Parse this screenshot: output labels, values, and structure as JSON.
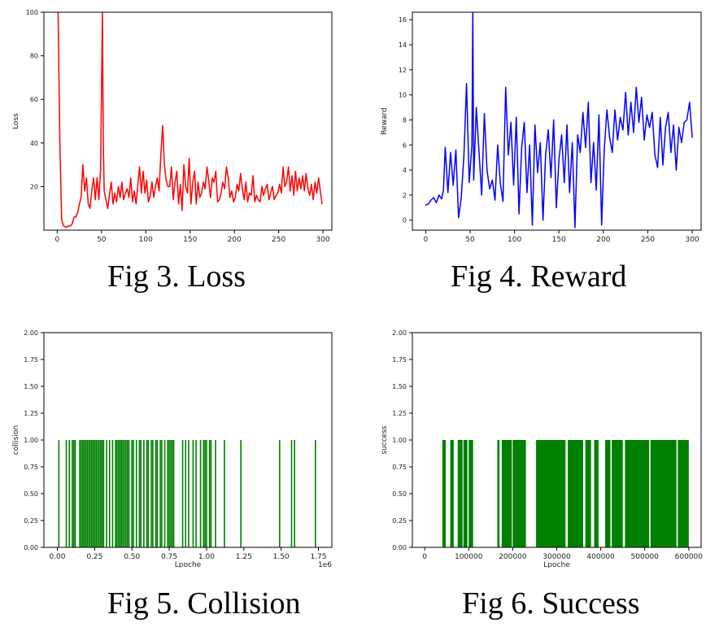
{
  "chart_data": [
    {
      "id": "loss",
      "type": "line",
      "caption": "Fig 3. Loss",
      "xlabel": "Lpoche",
      "ylabel": "Loss",
      "color": "#ff0000",
      "xlim": [
        -15,
        310
      ],
      "ylim": [
        0,
        100
      ],
      "xticks": [
        0,
        50,
        100,
        150,
        200,
        250,
        300
      ],
      "xtick_labels": [
        "0",
        "50",
        "100",
        "150",
        "200",
        "250",
        "300"
      ],
      "yticks": [
        20,
        40,
        60,
        80,
        100
      ],
      "ytick_labels": [
        "20",
        "40",
        "60",
        "80",
        "100"
      ],
      "x": [
        1,
        3,
        5,
        7,
        9,
        11,
        13,
        15,
        17,
        19,
        21,
        23,
        25,
        27,
        29,
        31,
        33,
        35,
        37,
        39,
        41,
        43,
        45,
        47,
        49,
        51,
        52,
        53,
        55,
        57,
        59,
        61,
        63,
        65,
        67,
        69,
        71,
        73,
        75,
        77,
        79,
        81,
        83,
        85,
        87,
        89,
        91,
        93,
        95,
        97,
        99,
        101,
        103,
        105,
        107,
        109,
        111,
        113,
        115,
        117,
        119,
        121,
        123,
        125,
        127,
        129,
        131,
        133,
        135,
        137,
        139,
        141,
        143,
        145,
        147,
        149,
        151,
        153,
        155,
        157,
        159,
        161,
        163,
        165,
        167,
        169,
        171,
        173,
        175,
        177,
        179,
        181,
        183,
        185,
        187,
        189,
        191,
        193,
        195,
        197,
        199,
        201,
        203,
        205,
        207,
        209,
        211,
        213,
        215,
        217,
        219,
        221,
        223,
        225,
        227,
        229,
        231,
        233,
        235,
        237,
        239,
        241,
        243,
        245,
        247,
        249,
        251,
        253,
        255,
        257,
        259,
        261,
        263,
        265,
        267,
        269,
        271,
        273,
        275,
        277,
        279,
        281,
        283,
        285,
        287,
        289,
        291,
        293,
        295,
        297,
        299
      ],
      "y": [
        100,
        40,
        5,
        2,
        1.5,
        1.5,
        2,
        2,
        3,
        6,
        6,
        8,
        12,
        15,
        30,
        18,
        24,
        12,
        10,
        18,
        24,
        14,
        24,
        14,
        28,
        100,
        40,
        18,
        14,
        10,
        16,
        22,
        12,
        17,
        13,
        20,
        15,
        22,
        14,
        17,
        19,
        15,
        24,
        13,
        18,
        12,
        21,
        29,
        17,
        27,
        17,
        23,
        13,
        16,
        22,
        15,
        20,
        24,
        18,
        35,
        48,
        30,
        23,
        20,
        20,
        29,
        14,
        22,
        27,
        12,
        21,
        9,
        30,
        20,
        17,
        33,
        12,
        22,
        27,
        12,
        22,
        15,
        17,
        22,
        19,
        29,
        23,
        15,
        24,
        22,
        27,
        13,
        14,
        17,
        22,
        19,
        29,
        24,
        15,
        18,
        13,
        15,
        21,
        18,
        26,
        19,
        14,
        22,
        13,
        17,
        16,
        25,
        13,
        16,
        14,
        13,
        20,
        16,
        19,
        21,
        14,
        17,
        20,
        14,
        16,
        17,
        21,
        17,
        29,
        20,
        22,
        29,
        18,
        25,
        16,
        27,
        18,
        24,
        19,
        25,
        18,
        26,
        19,
        16,
        21,
        14,
        22,
        17,
        24,
        18,
        12
      ]
    },
    {
      "id": "reward",
      "type": "line",
      "caption": "Fig 4. Reward",
      "xlabel": "Lpoche",
      "ylabel": "Reward",
      "color": "#0000ff",
      "xlim": [
        -15,
        310
      ],
      "ylim": [
        -0.8,
        16.6
      ],
      "xticks": [
        0,
        50,
        100,
        150,
        200,
        250,
        300
      ],
      "xtick_labels": [
        "0",
        "50",
        "100",
        "150",
        "200",
        "250",
        "300"
      ],
      "yticks": [
        0,
        2,
        4,
        6,
        8,
        10,
        12,
        14,
        16
      ],
      "ytick_labels": [
        "0",
        "2",
        "4",
        "6",
        "8",
        "10",
        "12",
        "14",
        "16"
      ],
      "x": [
        0,
        3,
        6,
        9,
        12,
        15,
        18,
        20,
        22,
        25,
        28,
        31,
        34,
        37,
        40,
        43,
        46,
        49,
        52,
        53,
        54,
        57,
        60,
        63,
        66,
        69,
        72,
        75,
        78,
        81,
        84,
        87,
        90,
        93,
        96,
        99,
        102,
        105,
        108,
        111,
        114,
        117,
        120,
        123,
        126,
        129,
        132,
        135,
        138,
        141,
        144,
        147,
        150,
        153,
        156,
        159,
        162,
        165,
        168,
        171,
        174,
        177,
        180,
        183,
        186,
        189,
        192,
        195,
        198,
        201,
        204,
        207,
        210,
        213,
        216,
        219,
        222,
        225,
        228,
        231,
        234,
        237,
        240,
        243,
        246,
        249,
        252,
        255,
        258,
        261,
        264,
        267,
        270,
        273,
        276,
        279,
        282,
        285,
        288,
        291,
        294,
        297,
        300
      ],
      "y": [
        1.2,
        1.3,
        1.6,
        1.8,
        1.4,
        2.0,
        1.7,
        2.4,
        5.8,
        2.2,
        5.4,
        2.8,
        5.6,
        0.2,
        1.8,
        5.2,
        10.9,
        3.0,
        6.0,
        16.6,
        3.2,
        9.0,
        5.5,
        2.0,
        8.5,
        4.0,
        2.5,
        3.2,
        1.6,
        6.0,
        3.0,
        1.5,
        10.6,
        5.2,
        7.8,
        2.8,
        8.2,
        0.5,
        5.8,
        7.8,
        2.2,
        6.0,
        -0.4,
        7.6,
        3.8,
        6.2,
        0.0,
        5.2,
        7.2,
        3.4,
        8.0,
        1.0,
        4.8,
        6.8,
        3.0,
        7.6,
        2.2,
        6.2,
        -0.6,
        6.8,
        5.4,
        8.6,
        5.8,
        9.4,
        3.0,
        6.2,
        2.4,
        8.4,
        -0.4,
        5.6,
        8.8,
        6.6,
        5.4,
        8.8,
        6.4,
        8.2,
        7.2,
        10.2,
        6.8,
        9.4,
        7.0,
        10.6,
        7.8,
        9.8,
        6.4,
        8.4,
        7.4,
        8.6,
        5.2,
        4.2,
        8.2,
        4.4,
        7.4,
        8.6,
        5.4,
        7.6,
        4.0,
        7.4,
        6.2,
        7.8,
        8.0,
        9.4,
        6.6
      ]
    },
    {
      "id": "collision",
      "type": "bar",
      "caption": "Fig 5. Collision",
      "xlabel": "Lpoche",
      "ylabel": "collision",
      "x_offset_label": "1e6",
      "color": "#008000",
      "bar_value": 1,
      "xlim": [
        -0.09,
        1.84
      ],
      "ylim": [
        0,
        2
      ],
      "xticks": [
        0,
        0.25,
        0.5,
        0.75,
        1.0,
        1.25,
        1.5,
        1.75
      ],
      "xtick_labels": [
        "0.00",
        "0.25",
        "0.50",
        "0.75",
        "1.00",
        "1.25",
        "1.50",
        "1.75"
      ],
      "yticks": [
        0,
        0.25,
        0.5,
        0.75,
        1.0,
        1.25,
        1.5,
        1.75,
        2.0
      ],
      "ytick_labels": [
        "0.00",
        "0.25",
        "0.50",
        "0.75",
        "1.00",
        "1.25",
        "1.50",
        "1.75",
        "2.00"
      ],
      "x": [
        0.01,
        0.06,
        0.08,
        0.1,
        0.11,
        0.12,
        0.15,
        0.16,
        0.17,
        0.18,
        0.19,
        0.2,
        0.21,
        0.22,
        0.23,
        0.24,
        0.25,
        0.26,
        0.27,
        0.28,
        0.29,
        0.3,
        0.31,
        0.33,
        0.35,
        0.37,
        0.39,
        0.4,
        0.41,
        0.42,
        0.43,
        0.44,
        0.45,
        0.46,
        0.47,
        0.48,
        0.5,
        0.51,
        0.53,
        0.55,
        0.56,
        0.58,
        0.6,
        0.61,
        0.63,
        0.64,
        0.66,
        0.67,
        0.69,
        0.7,
        0.72,
        0.74,
        0.75,
        0.76,
        0.77,
        0.78,
        0.84,
        0.86,
        0.88,
        0.91,
        0.93,
        0.96,
        0.98,
        0.99,
        1.0,
        1.02,
        1.03,
        1.06,
        1.12,
        1.23,
        1.49,
        1.57,
        1.59,
        1.73
      ]
    },
    {
      "id": "success",
      "type": "bar",
      "caption": "Fig 6. Success",
      "xlabel": "Lpoche",
      "ylabel": "success",
      "color": "#008000",
      "bar_value": 1,
      "xlim": [
        -28000,
        628000
      ],
      "ylim": [
        0,
        2
      ],
      "xticks": [
        0,
        100000,
        200000,
        300000,
        400000,
        500000,
        600000
      ],
      "xtick_labels": [
        "0",
        "100000",
        "200000",
        "300000",
        "400000",
        "500000",
        "600000"
      ],
      "yticks": [
        0,
        0.25,
        0.5,
        0.75,
        1.0,
        1.25,
        1.5,
        1.75,
        2.0
      ],
      "ytick_labels": [
        "0.00",
        "0.25",
        "0.50",
        "0.75",
        "1.00",
        "1.25",
        "1.50",
        "1.75",
        "2.00"
      ],
      "dense_segments": [
        [
          40000,
          48000
        ],
        [
          58000,
          66000
        ],
        [
          75000,
          86000
        ],
        [
          88000,
          97000
        ],
        [
          100000,
          110000
        ],
        [
          165000,
          170000
        ],
        [
          175000,
          198000
        ],
        [
          200000,
          230000
        ],
        [
          253000,
          320000
        ],
        [
          325000,
          360000
        ],
        [
          365000,
          378000
        ],
        [
          385000,
          395000
        ],
        [
          410000,
          422000
        ],
        [
          425000,
          450000
        ],
        [
          455000,
          510000
        ],
        [
          513000,
          572000
        ],
        [
          575000,
          600000
        ]
      ]
    }
  ]
}
